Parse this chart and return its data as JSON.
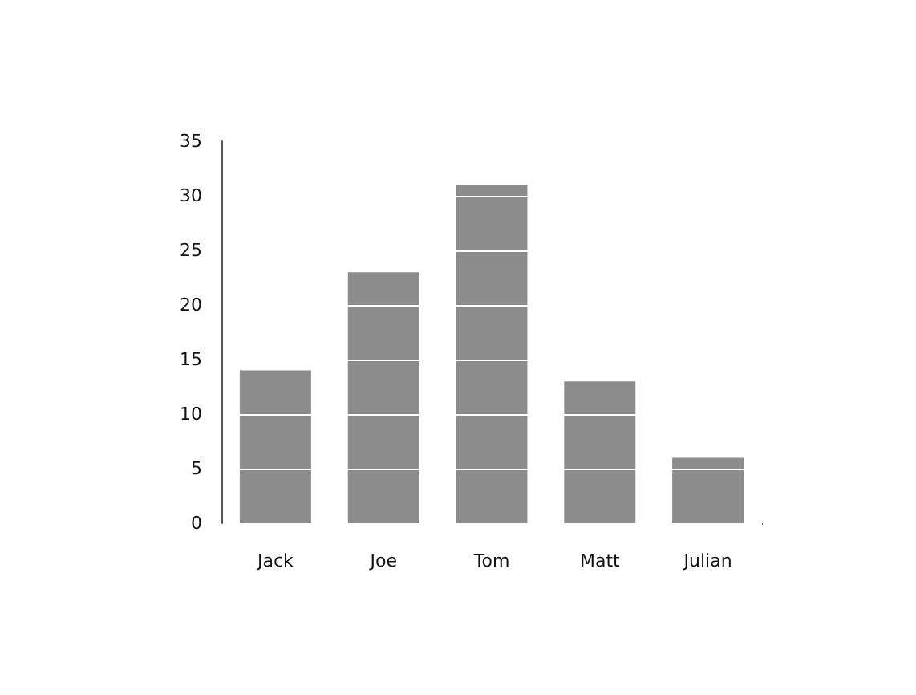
{
  "chart_data": {
    "type": "bar",
    "categories": [
      "Jack",
      "Joe",
      "Tom",
      "Matt",
      "Julian"
    ],
    "values": [
      14,
      23,
      31,
      13,
      6
    ],
    "color": "#8c8c8c",
    "ylim": [
      0,
      35
    ],
    "yticks": [
      0,
      5,
      10,
      15,
      20,
      25,
      30,
      35
    ],
    "grid": "y"
  }
}
